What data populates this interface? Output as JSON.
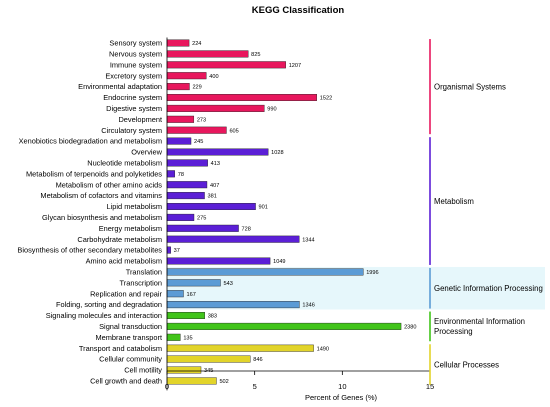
{
  "chart_data": {
    "type": "bar",
    "orientation": "horizontal",
    "title": "KEGG Classification",
    "xlabel": "Percent of Genes (%)",
    "ylabel": "",
    "xlim": [
      0,
      15
    ],
    "xticks": [
      0,
      5,
      10,
      15
    ],
    "grid": false,
    "categories": [
      {
        "name": "Sensory system",
        "count": 224,
        "percent": 1.26,
        "group": 0
      },
      {
        "name": "Nervous system",
        "count": 825,
        "percent": 4.63,
        "group": 0
      },
      {
        "name": "Immune system",
        "count": 1207,
        "percent": 6.77,
        "group": 0
      },
      {
        "name": "Excretory system",
        "count": 400,
        "percent": 2.24,
        "group": 0
      },
      {
        "name": "Environmental adaptation",
        "count": 229,
        "percent": 1.28,
        "group": 0
      },
      {
        "name": "Endocrine system",
        "count": 1522,
        "percent": 8.54,
        "group": 0
      },
      {
        "name": "Digestive system",
        "count": 990,
        "percent": 5.55,
        "group": 0
      },
      {
        "name": "Development",
        "count": 273,
        "percent": 1.53,
        "group": 0
      },
      {
        "name": "Circulatory system",
        "count": 605,
        "percent": 3.39,
        "group": 0
      },
      {
        "name": "Xenobiotics biodegradation and metabolism",
        "count": 245,
        "percent": 1.37,
        "group": 1
      },
      {
        "name": "Overview",
        "count": 1028,
        "percent": 5.77,
        "group": 1
      },
      {
        "name": "Nucleotide metabolism",
        "count": 413,
        "percent": 2.32,
        "group": 1
      },
      {
        "name": "Metabolism of terpenoids and polyketides",
        "count": 78,
        "percent": 0.44,
        "group": 1
      },
      {
        "name": "Metabolism of other amino acids",
        "count": 407,
        "percent": 2.28,
        "group": 1
      },
      {
        "name": "Metabolism of cofactors and vitamins",
        "count": 381,
        "percent": 2.14,
        "group": 1
      },
      {
        "name": "Lipid metabolism",
        "count": 901,
        "percent": 5.05,
        "group": 1
      },
      {
        "name": "Glycan biosynthesis and metabolism",
        "count": 275,
        "percent": 1.54,
        "group": 1
      },
      {
        "name": "Energy metabolism",
        "count": 728,
        "percent": 4.08,
        "group": 1
      },
      {
        "name": "Carbohydrate metabolism",
        "count": 1344,
        "percent": 7.54,
        "group": 1
      },
      {
        "name": "Biosynthesis of other secondary metabolites",
        "count": 37,
        "percent": 0.21,
        "group": 1
      },
      {
        "name": "Amino acid metabolism",
        "count": 1049,
        "percent": 5.88,
        "group": 1
      },
      {
        "name": "Translation",
        "count": 1996,
        "percent": 11.19,
        "group": 2
      },
      {
        "name": "Transcription",
        "count": 543,
        "percent": 3.05,
        "group": 2
      },
      {
        "name": "Replication and repair",
        "count": 167,
        "percent": 0.94,
        "group": 2
      },
      {
        "name": "Folding, sorting and degradation",
        "count": 1346,
        "percent": 7.55,
        "group": 2
      },
      {
        "name": "Signaling molecules and interaction",
        "count": 383,
        "percent": 2.15,
        "group": 3
      },
      {
        "name": "Signal transduction",
        "count": 2380,
        "percent": 13.35,
        "group": 3
      },
      {
        "name": "Membrane transport",
        "count": 135,
        "percent": 0.76,
        "group": 3
      },
      {
        "name": "Transport and catabolism",
        "count": 1490,
        "percent": 8.36,
        "group": 4
      },
      {
        "name": "Cellular community",
        "count": 846,
        "percent": 4.75,
        "group": 4
      },
      {
        "name": "Cell motility",
        "count": 345,
        "percent": 1.94,
        "group": 4
      },
      {
        "name": "Cell growth and death",
        "count": 502,
        "percent": 2.82,
        "group": 4
      }
    ],
    "groups": [
      {
        "label": "Organismal Systems",
        "lines": [
          "Organismal Systems"
        ],
        "color": "#e8175d"
      },
      {
        "label": "Metabolism",
        "lines": [
          "Metabolism"
        ],
        "color": "#5b1fd6"
      },
      {
        "label": "Genetic Information Processing",
        "lines": [
          "Genetic Information Processing"
        ],
        "color": "#5b9bd5"
      },
      {
        "label": "Environmental Information Processing",
        "lines": [
          "Environmental Information",
          "Processing"
        ],
        "color": "#41c41a"
      },
      {
        "label": "Cellular Processes",
        "lines": [
          "Cellular Processes"
        ],
        "color": "#e2d42a"
      }
    ]
  }
}
